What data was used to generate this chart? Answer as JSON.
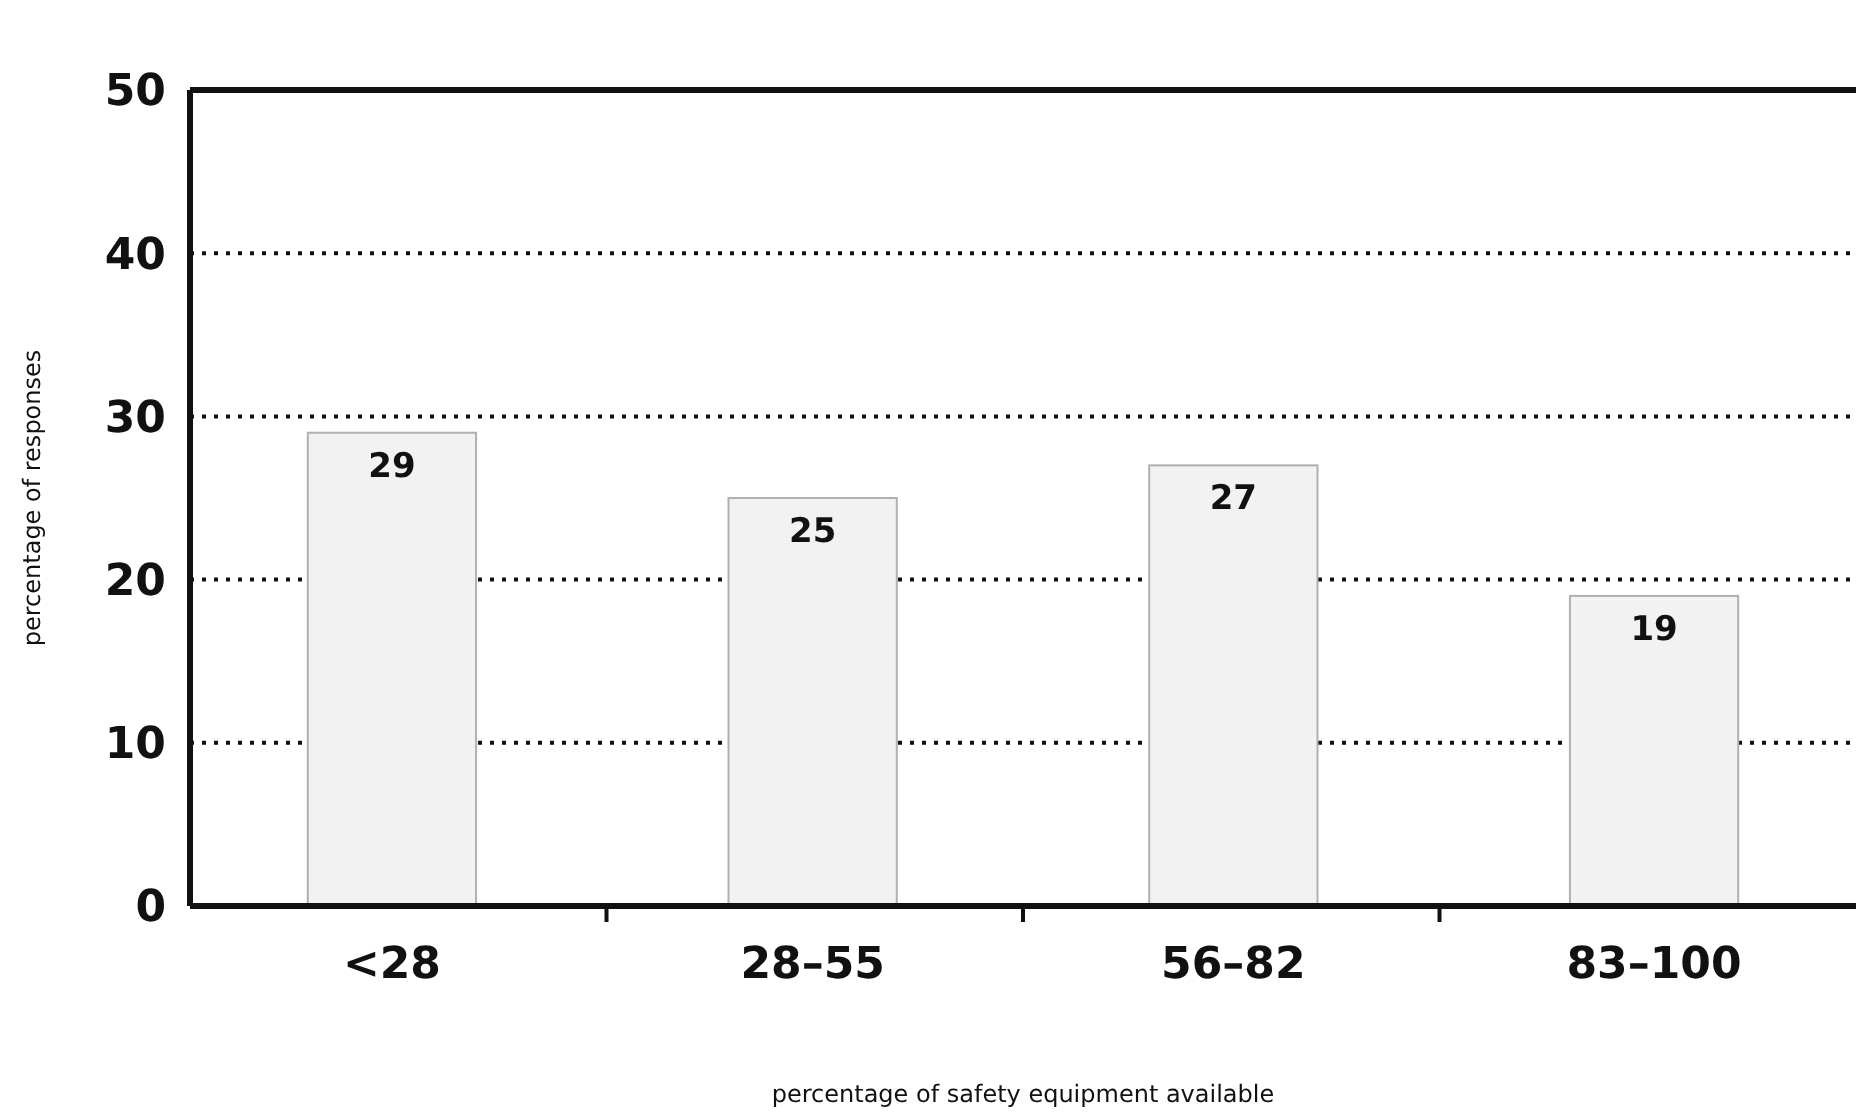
{
  "chart_data": {
    "type": "bar",
    "xlabel": "percentage of safety equipment available",
    "ylabel": "percentage of responses",
    "categories": [
      "<28",
      "28–55",
      "56–82",
      "83–100"
    ],
    "values": [
      29,
      25,
      27,
      19
    ],
    "color": "#f2f2f2",
    "ylim": [
      0,
      50
    ],
    "yticks": [
      0,
      10,
      20,
      30,
      40,
      50
    ],
    "grid": "y",
    "data_labels": true
  }
}
